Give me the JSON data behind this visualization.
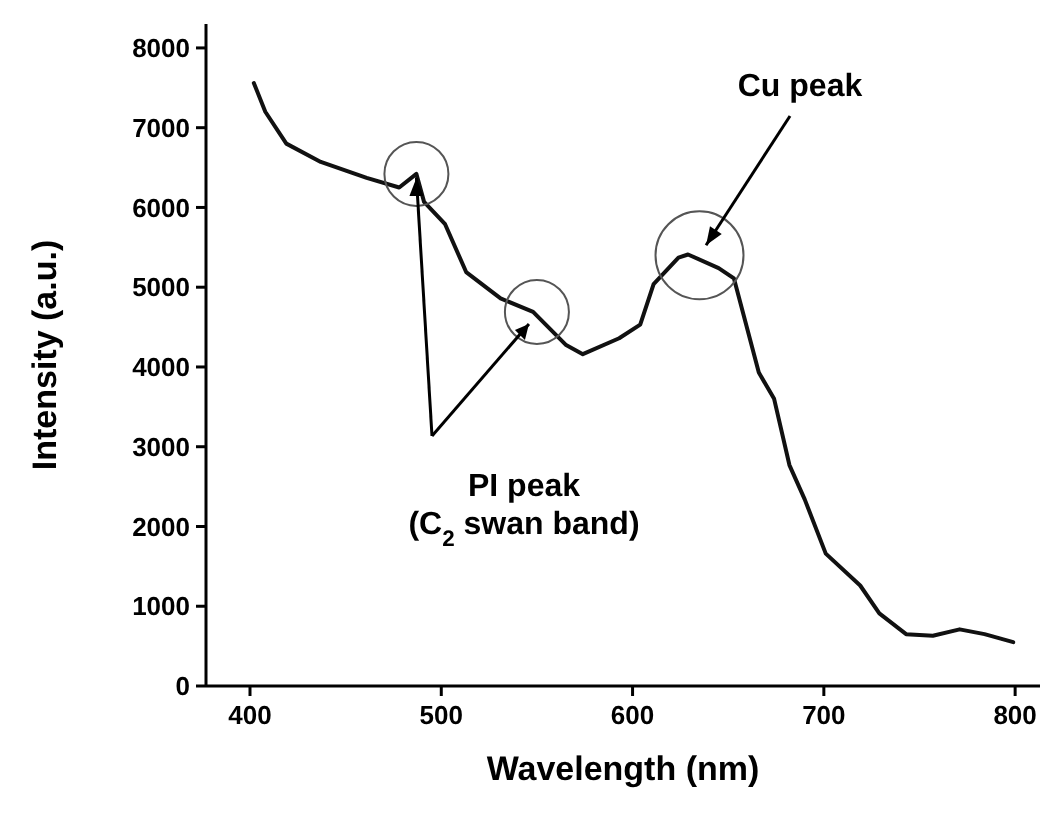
{
  "chart_data": {
    "type": "line",
    "xlabel": "Wavelength (nm)",
    "ylabel": "Intensity (a.u.)",
    "xlim": [
      377,
      813
    ],
    "ylim": [
      0,
      8300
    ],
    "xticks": [
      400,
      500,
      600,
      700,
      800
    ],
    "yticks": [
      0,
      1000,
      2000,
      3000,
      4000,
      5000,
      6000,
      7000,
      8000
    ],
    "grid": false,
    "series": [
      {
        "color": "#111111",
        "x": [
          402,
          408,
          419,
          437,
          461,
          478,
          487,
          491,
          502,
          513,
          531,
          548,
          565,
          574,
          593,
          604,
          611,
          624,
          629,
          645,
          653,
          666,
          674,
          682,
          690,
          701,
          719,
          729,
          743,
          757,
          771,
          784,
          799
        ],
        "values": [
          7560,
          7200,
          6800,
          6570,
          6370,
          6250,
          6420,
          6070,
          5790,
          5190,
          4860,
          4690,
          4280,
          4160,
          4360,
          4530,
          5040,
          5370,
          5410,
          5240,
          5110,
          3930,
          3600,
          2770,
          2340,
          1660,
          1260,
          910,
          650,
          630,
          710,
          650,
          550
        ]
      }
    ],
    "annotations": [
      {
        "text": "Cu peak",
        "x": 635,
        "y": 5400
      },
      {
        "text": "PI peak\n(C$_{2}$ swan band)",
        "x": 550,
        "y": 4690
      }
    ]
  }
}
